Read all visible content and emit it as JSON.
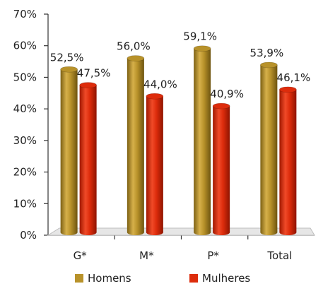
{
  "chart_data": {
    "type": "bar",
    "categories": [
      "G*",
      "M*",
      "P*",
      "Total"
    ],
    "series": [
      {
        "name": "Homens",
        "values": [
          52.5,
          56.0,
          59.1,
          53.9
        ],
        "labels": [
          "52,5%",
          "56,0%",
          "59,1%",
          "53,9%"
        ],
        "color": "#B8922A"
      },
      {
        "name": "Mulheres",
        "values": [
          47.5,
          44.0,
          40.9,
          46.1
        ],
        "labels": [
          "47,5%",
          "44,0%",
          "40,9%",
          "46,1%"
        ],
        "color": "#DD2C0C"
      }
    ],
    "ylim": [
      0,
      70
    ],
    "yticks": [
      "0%",
      "10%",
      "20%",
      "30%",
      "40%",
      "50%",
      "60%",
      "70%"
    ],
    "grid": false,
    "legend": "bottom"
  }
}
